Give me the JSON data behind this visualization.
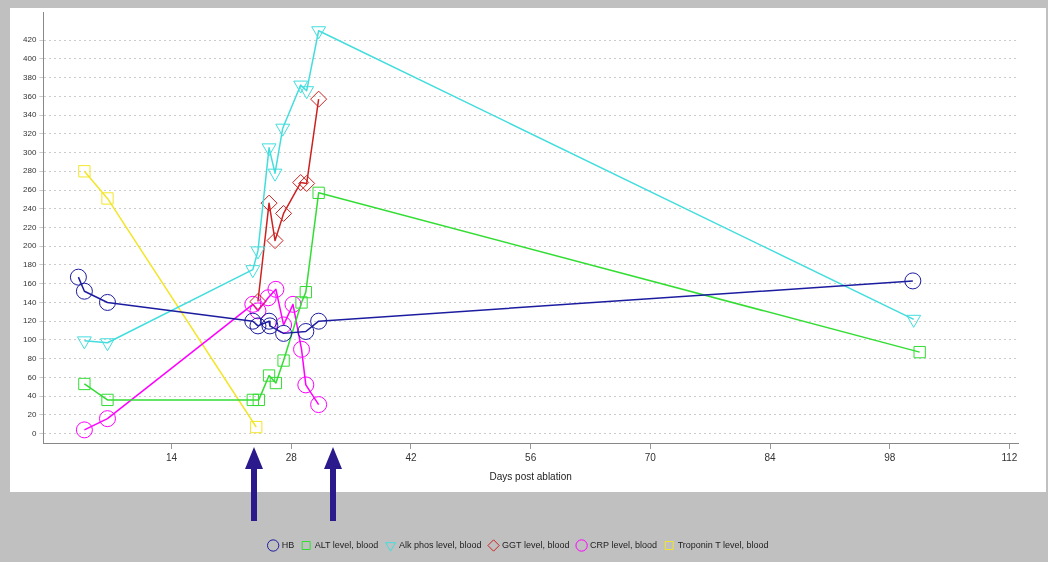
{
  "chart_data": {
    "type": "line",
    "xlabel": "Days post ablation",
    "xlim": [
      -1,
      113
    ],
    "xticks": [
      14,
      28,
      42,
      56,
      70,
      84,
      98,
      112
    ],
    "ylim": [
      -10,
      450
    ],
    "yticks": [
      0,
      20,
      40,
      60,
      80,
      100,
      120,
      140,
      160,
      180,
      200,
      220,
      240,
      260,
      280,
      300,
      320,
      340,
      360,
      380,
      400,
      420
    ],
    "grid": "y",
    "legend": "bottom",
    "series": [
      {
        "name": "HB",
        "color": "#1c1ca0",
        "marker": "circle",
        "x": [
          3.1,
          3.8,
          6.5,
          23.5,
          24.1,
          25.4,
          25.5,
          27.1,
          29.7,
          31.2,
          100.7
        ],
        "values": [
          167,
          152,
          140,
          120,
          115,
          120,
          115,
          107,
          109,
          120,
          163
        ]
      },
      {
        "name": "ALT level, blood",
        "color": "#33dd33",
        "marker": "square",
        "x": [
          3.8,
          6.5,
          23.5,
          24.2,
          25.4,
          26.2,
          27.1,
          29.2,
          29.7,
          31.2,
          101.5
        ],
        "values": [
          53,
          36,
          36,
          36,
          62,
          54,
          78,
          140,
          151,
          257,
          87
        ]
      },
      {
        "name": "Alk phos level, blood",
        "color": "#44dddd",
        "marker": "triangle",
        "x": [
          3.8,
          6.5,
          23.5,
          24.1,
          25.4,
          26.1,
          27.0,
          29.1,
          29.8,
          31.2,
          100.8
        ],
        "values": [
          99,
          97,
          175,
          195,
          305,
          278,
          326,
          372,
          366,
          430,
          122
        ]
      },
      {
        "name": "GGT level, blood",
        "color": "#cc2222",
        "marker": "diamond",
        "x": [
          24.1,
          25.4,
          26.1,
          27.1,
          29.1,
          29.8,
          31.2
        ],
        "values": [
          141,
          246,
          206,
          235,
          268,
          267,
          357
        ]
      },
      {
        "name": "CRP level, blood",
        "color": "#ff00ff",
        "marker": "circle",
        "x": [
          3.8,
          6.5,
          23.5,
          24.1,
          25.3,
          26.2,
          27.1,
          28.2,
          29.2,
          29.7,
          31.2
        ],
        "values": [
          4,
          16,
          138,
          131,
          145,
          154,
          116,
          138,
          90,
          52,
          31
        ]
      },
      {
        "name": "Troponin T level, blood",
        "color": "#f2e62a",
        "marker": "square",
        "x": [
          3.8,
          6.5,
          23.9
        ],
        "values": [
          280,
          251,
          7
        ]
      }
    ]
  }
}
